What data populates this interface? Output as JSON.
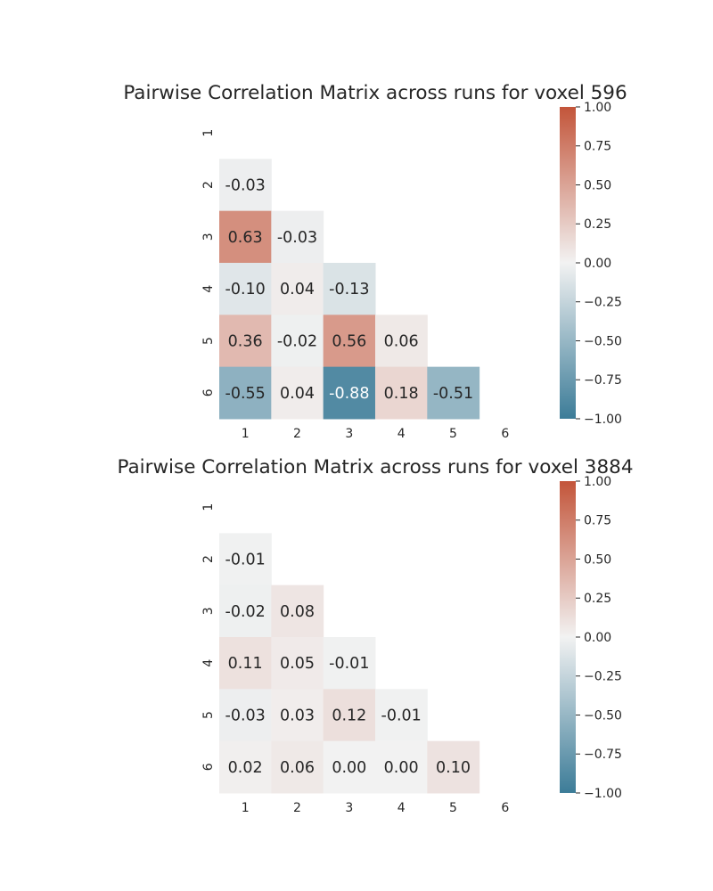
{
  "chart_data": [
    {
      "type": "heatmap",
      "title": "Pairwise Correlation Matrix across runs for voxel 596",
      "x_ticks": [
        "1",
        "2",
        "3",
        "4",
        "5",
        "6"
      ],
      "y_ticks": [
        "1",
        "2",
        "3",
        "4",
        "5",
        "6"
      ],
      "mask": "upper-triangle-including-diagonal",
      "matrix": [
        [
          null,
          null,
          null,
          null,
          null,
          null
        ],
        [
          -0.03,
          null,
          null,
          null,
          null,
          null
        ],
        [
          0.63,
          -0.03,
          null,
          null,
          null,
          null
        ],
        [
          -0.1,
          0.04,
          -0.13,
          null,
          null,
          null
        ],
        [
          0.36,
          -0.02,
          0.56,
          0.06,
          null,
          null
        ],
        [
          -0.55,
          0.04,
          -0.88,
          0.18,
          -0.51,
          null
        ]
      ],
      "labels": [
        [
          null,
          null,
          null,
          null,
          null,
          null
        ],
        [
          "-0.03",
          null,
          null,
          null,
          null,
          null
        ],
        [
          "0.63",
          "-0.03",
          null,
          null,
          null,
          null
        ],
        [
          "-0.10",
          "0.04",
          "-0.13",
          null,
          null,
          null
        ],
        [
          "0.36",
          "-0.02",
          "0.56",
          "0.06",
          null,
          null
        ],
        [
          "-0.55",
          "0.04",
          "-0.88",
          "0.18",
          "-0.51",
          null
        ]
      ],
      "vmin": -1.0,
      "vmax": 1.0,
      "colorbar_ticks": [
        "1.00",
        "0.75",
        "0.50",
        "0.25",
        "0.00",
        "−0.25",
        "−0.50",
        "−0.75",
        "−1.00"
      ],
      "colormap": {
        "low": "#3c7c98",
        "mid": "#f2f2f2",
        "high": "#c3553a"
      }
    },
    {
      "type": "heatmap",
      "title": "Pairwise Correlation Matrix across runs for voxel 3884",
      "x_ticks": [
        "1",
        "2",
        "3",
        "4",
        "5",
        "6"
      ],
      "y_ticks": [
        "1",
        "2",
        "3",
        "4",
        "5",
        "6"
      ],
      "mask": "upper-triangle-including-diagonal",
      "matrix": [
        [
          null,
          null,
          null,
          null,
          null,
          null
        ],
        [
          -0.01,
          null,
          null,
          null,
          null,
          null
        ],
        [
          -0.02,
          0.08,
          null,
          null,
          null,
          null
        ],
        [
          0.11,
          0.05,
          -0.01,
          null,
          null,
          null
        ],
        [
          -0.03,
          0.03,
          0.12,
          -0.01,
          null,
          null
        ],
        [
          0.02,
          0.06,
          0.0,
          0.0,
          0.1,
          null
        ]
      ],
      "labels": [
        [
          null,
          null,
          null,
          null,
          null,
          null
        ],
        [
          "-0.01",
          null,
          null,
          null,
          null,
          null
        ],
        [
          "-0.02",
          "0.08",
          null,
          null,
          null,
          null
        ],
        [
          "0.11",
          "0.05",
          "-0.01",
          null,
          null,
          null
        ],
        [
          "-0.03",
          "0.03",
          "0.12",
          "-0.01",
          null,
          null
        ],
        [
          "0.02",
          "0.06",
          "0.00",
          "0.00",
          "0.10",
          null
        ]
      ],
      "vmin": -1.0,
      "vmax": 1.0,
      "colorbar_ticks": [
        "1.00",
        "0.75",
        "0.50",
        "0.25",
        "0.00",
        "−0.25",
        "−0.50",
        "−0.75",
        "−1.00"
      ],
      "colormap": {
        "low": "#3c7c98",
        "mid": "#f2f2f2",
        "high": "#c3553a"
      }
    }
  ]
}
